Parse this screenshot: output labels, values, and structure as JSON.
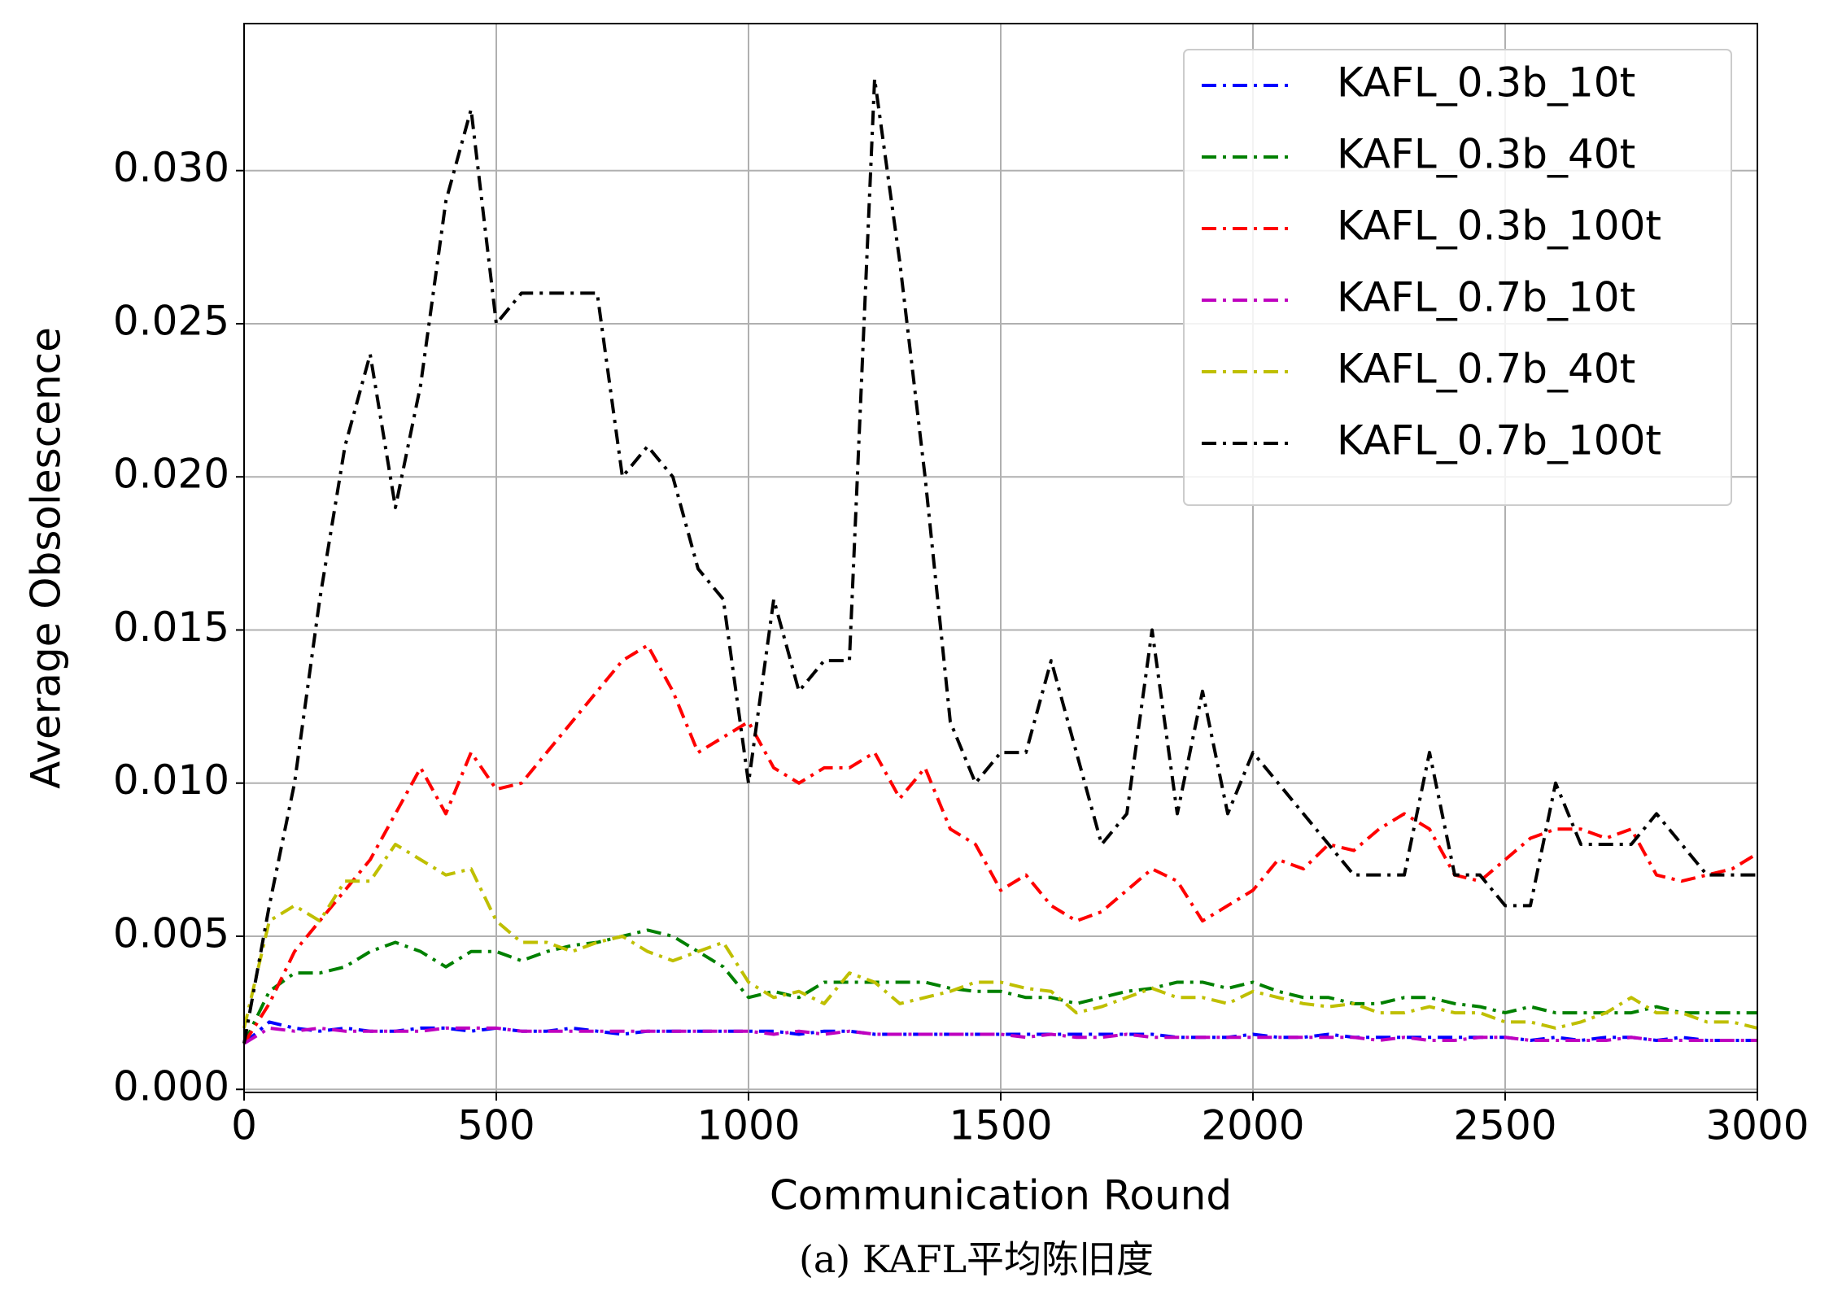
{
  "chart_data": {
    "type": "line",
    "xlabel": "Communication Round",
    "ylabel": "Average Obsolescence",
    "caption": "(a) KAFL平均陈旧度",
    "x": [
      0,
      50,
      100,
      150,
      200,
      250,
      300,
      350,
      400,
      450,
      500,
      550,
      600,
      650,
      700,
      750,
      800,
      850,
      900,
      950,
      1000,
      1050,
      1100,
      1150,
      1200,
      1250,
      1300,
      1350,
      1400,
      1450,
      1500,
      1550,
      1600,
      1650,
      1700,
      1750,
      1800,
      1850,
      1900,
      1950,
      2000,
      2050,
      2100,
      2150,
      2200,
      2250,
      2300,
      2350,
      2400,
      2450,
      2500,
      2550,
      2600,
      2650,
      2700,
      2750,
      2800,
      2850,
      2900,
      2950,
      3000
    ],
    "series": [
      {
        "name": "KAFL_0.3b_10t",
        "color": "#0000ff",
        "values": [
          0.0015,
          0.0022,
          0.002,
          0.0019,
          0.002,
          0.0019,
          0.0019,
          0.002,
          0.002,
          0.0019,
          0.002,
          0.0019,
          0.0019,
          0.002,
          0.0019,
          0.0018,
          0.0019,
          0.0019,
          0.0019,
          0.0019,
          0.0019,
          0.0019,
          0.0018,
          0.0019,
          0.0019,
          0.0018,
          0.0018,
          0.0018,
          0.0018,
          0.0018,
          0.0018,
          0.0018,
          0.0018,
          0.0018,
          0.0018,
          0.0018,
          0.0018,
          0.0017,
          0.0017,
          0.0017,
          0.0018,
          0.0017,
          0.0017,
          0.0018,
          0.0017,
          0.0017,
          0.0017,
          0.0017,
          0.0017,
          0.0017,
          0.0017,
          0.0016,
          0.0017,
          0.0016,
          0.0017,
          0.0017,
          0.0016,
          0.0017,
          0.0016,
          0.0016,
          0.0016
        ]
      },
      {
        "name": "KAFL_0.3b_40t",
        "color": "#008000",
        "values": [
          0.0015,
          0.0032,
          0.0038,
          0.0038,
          0.004,
          0.0045,
          0.0048,
          0.0045,
          0.004,
          0.0045,
          0.0045,
          0.0042,
          0.0045,
          0.0047,
          0.0048,
          0.005,
          0.0052,
          0.005,
          0.0045,
          0.004,
          0.003,
          0.0032,
          0.003,
          0.0035,
          0.0035,
          0.0035,
          0.0035,
          0.0035,
          0.0033,
          0.0032,
          0.0032,
          0.003,
          0.003,
          0.0028,
          0.003,
          0.0032,
          0.0033,
          0.0035,
          0.0035,
          0.0033,
          0.0035,
          0.0032,
          0.003,
          0.003,
          0.0028,
          0.0028,
          0.003,
          0.003,
          0.0028,
          0.0027,
          0.0025,
          0.0027,
          0.0025,
          0.0025,
          0.0025,
          0.0025,
          0.0027,
          0.0025,
          0.0025,
          0.0025,
          0.0025
        ]
      },
      {
        "name": "KAFL_0.3b_100t",
        "color": "#ff0000",
        "values": [
          0.0015,
          0.0028,
          0.0045,
          0.0055,
          0.0065,
          0.0075,
          0.009,
          0.0105,
          0.009,
          0.011,
          0.0098,
          0.01,
          0.011,
          0.012,
          0.013,
          0.014,
          0.0145,
          0.013,
          0.011,
          0.0115,
          0.012,
          0.0105,
          0.01,
          0.0105,
          0.0105,
          0.011,
          0.0095,
          0.0105,
          0.0085,
          0.008,
          0.0065,
          0.007,
          0.006,
          0.0055,
          0.0058,
          0.0065,
          0.0072,
          0.0068,
          0.0055,
          0.006,
          0.0065,
          0.0075,
          0.0072,
          0.008,
          0.0078,
          0.0085,
          0.009,
          0.0085,
          0.007,
          0.0068,
          0.0075,
          0.0082,
          0.0085,
          0.0085,
          0.0082,
          0.0085,
          0.007,
          0.0068,
          0.007,
          0.0072,
          0.0077
        ]
      },
      {
        "name": "KAFL_0.7b_10t",
        "color": "#bf00bf",
        "values": [
          0.0015,
          0.002,
          0.0019,
          0.002,
          0.0019,
          0.0019,
          0.0019,
          0.0019,
          0.002,
          0.002,
          0.002,
          0.0019,
          0.0019,
          0.0019,
          0.0019,
          0.0019,
          0.0019,
          0.0019,
          0.0019,
          0.0019,
          0.0019,
          0.0018,
          0.0019,
          0.0018,
          0.0019,
          0.0018,
          0.0018,
          0.0018,
          0.0018,
          0.0018,
          0.0018,
          0.0017,
          0.0018,
          0.0017,
          0.0017,
          0.0018,
          0.0017,
          0.0017,
          0.0017,
          0.0017,
          0.0017,
          0.0017,
          0.0017,
          0.0017,
          0.0017,
          0.0016,
          0.0017,
          0.0016,
          0.0016,
          0.0017,
          0.0017,
          0.0016,
          0.0016,
          0.0016,
          0.0016,
          0.0017,
          0.0016,
          0.0016,
          0.0016,
          0.0016,
          0.0016
        ]
      },
      {
        "name": "KAFL_0.7b_40t",
        "color": "#bfbf00",
        "values": [
          0.002,
          0.0055,
          0.006,
          0.0055,
          0.0068,
          0.0068,
          0.008,
          0.0075,
          0.007,
          0.0072,
          0.0055,
          0.0048,
          0.0048,
          0.0045,
          0.0048,
          0.005,
          0.0045,
          0.0042,
          0.0045,
          0.0048,
          0.0035,
          0.003,
          0.0032,
          0.0028,
          0.0038,
          0.0035,
          0.0028,
          0.003,
          0.0032,
          0.0035,
          0.0035,
          0.0033,
          0.0032,
          0.0025,
          0.0027,
          0.003,
          0.0033,
          0.003,
          0.003,
          0.0028,
          0.0032,
          0.003,
          0.0028,
          0.0027,
          0.0028,
          0.0025,
          0.0025,
          0.0027,
          0.0025,
          0.0025,
          0.0022,
          0.0022,
          0.002,
          0.0022,
          0.0025,
          0.003,
          0.0025,
          0.0025,
          0.0022,
          0.0022,
          0.002
        ]
      },
      {
        "name": "KAFL_0.7b_100t",
        "color": "#000000",
        "values": [
          0.0015,
          0.006,
          0.01,
          0.016,
          0.021,
          0.024,
          0.019,
          0.023,
          0.029,
          0.032,
          0.025,
          0.026,
          0.026,
          0.026,
          0.026,
          0.02,
          0.021,
          0.02,
          0.017,
          0.016,
          0.01,
          0.016,
          0.013,
          0.014,
          0.014,
          0.033,
          0.027,
          0.02,
          0.012,
          0.01,
          0.011,
          0.011,
          0.014,
          0.011,
          0.008,
          0.009,
          0.015,
          0.009,
          0.013,
          0.009,
          0.011,
          0.01,
          0.009,
          0.008,
          0.007,
          0.007,
          0.007,
          0.011,
          0.007,
          0.007,
          0.006,
          0.006,
          0.01,
          0.008,
          0.008,
          0.008,
          0.009,
          0.008,
          0.007,
          0.007,
          0.007
        ]
      }
    ],
    "xlim": [
      0,
      3000
    ],
    "ylim": [
      -0.0001,
      0.0348
    ],
    "xticks": [
      0,
      500,
      1000,
      1500,
      2000,
      2500,
      3000
    ],
    "yticks": [
      {
        "value": 0,
        "label": "0.000"
      },
      {
        "value": 0.005,
        "label": "0.005"
      },
      {
        "value": 0.01,
        "label": "0.010"
      },
      {
        "value": 0.015,
        "label": "0.015"
      },
      {
        "value": 0.02,
        "label": "0.020"
      },
      {
        "value": 0.025,
        "label": "0.025"
      },
      {
        "value": 0.03,
        "label": "0.030"
      }
    ],
    "grid": true,
    "legend": "upper right"
  }
}
